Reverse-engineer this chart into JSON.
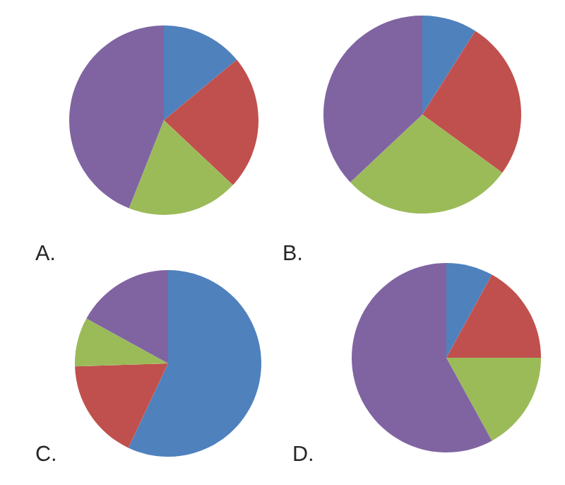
{
  "chart_data": [
    {
      "type": "pie",
      "title": "A.",
      "categories": [
        null,
        null,
        null,
        null
      ],
      "values": [
        14,
        23,
        19,
        44
      ],
      "colors": [
        "#4f81bd",
        "#c0504d",
        "#9bbb59",
        "#8064a2"
      ]
    },
    {
      "type": "pie",
      "title": "B.",
      "categories": [
        null,
        null,
        null,
        null
      ],
      "values": [
        9,
        26,
        28,
        37
      ],
      "colors": [
        "#4f81bd",
        "#c0504d",
        "#9bbb59",
        "#8064a2"
      ]
    },
    {
      "type": "pie",
      "title": "C.",
      "categories": [
        null,
        null,
        null,
        null
      ],
      "values": [
        57,
        17.5,
        8.5,
        17
      ],
      "colors": [
        "#4f81bd",
        "#c0504d",
        "#9bbb59",
        "#8064a2"
      ]
    },
    {
      "type": "pie",
      "title": "D.",
      "categories": [
        null,
        null,
        null,
        null
      ],
      "values": [
        8,
        17,
        17,
        58
      ],
      "colors": [
        "#4f81bd",
        "#c0504d",
        "#9bbb59",
        "#8064a2"
      ]
    }
  ]
}
